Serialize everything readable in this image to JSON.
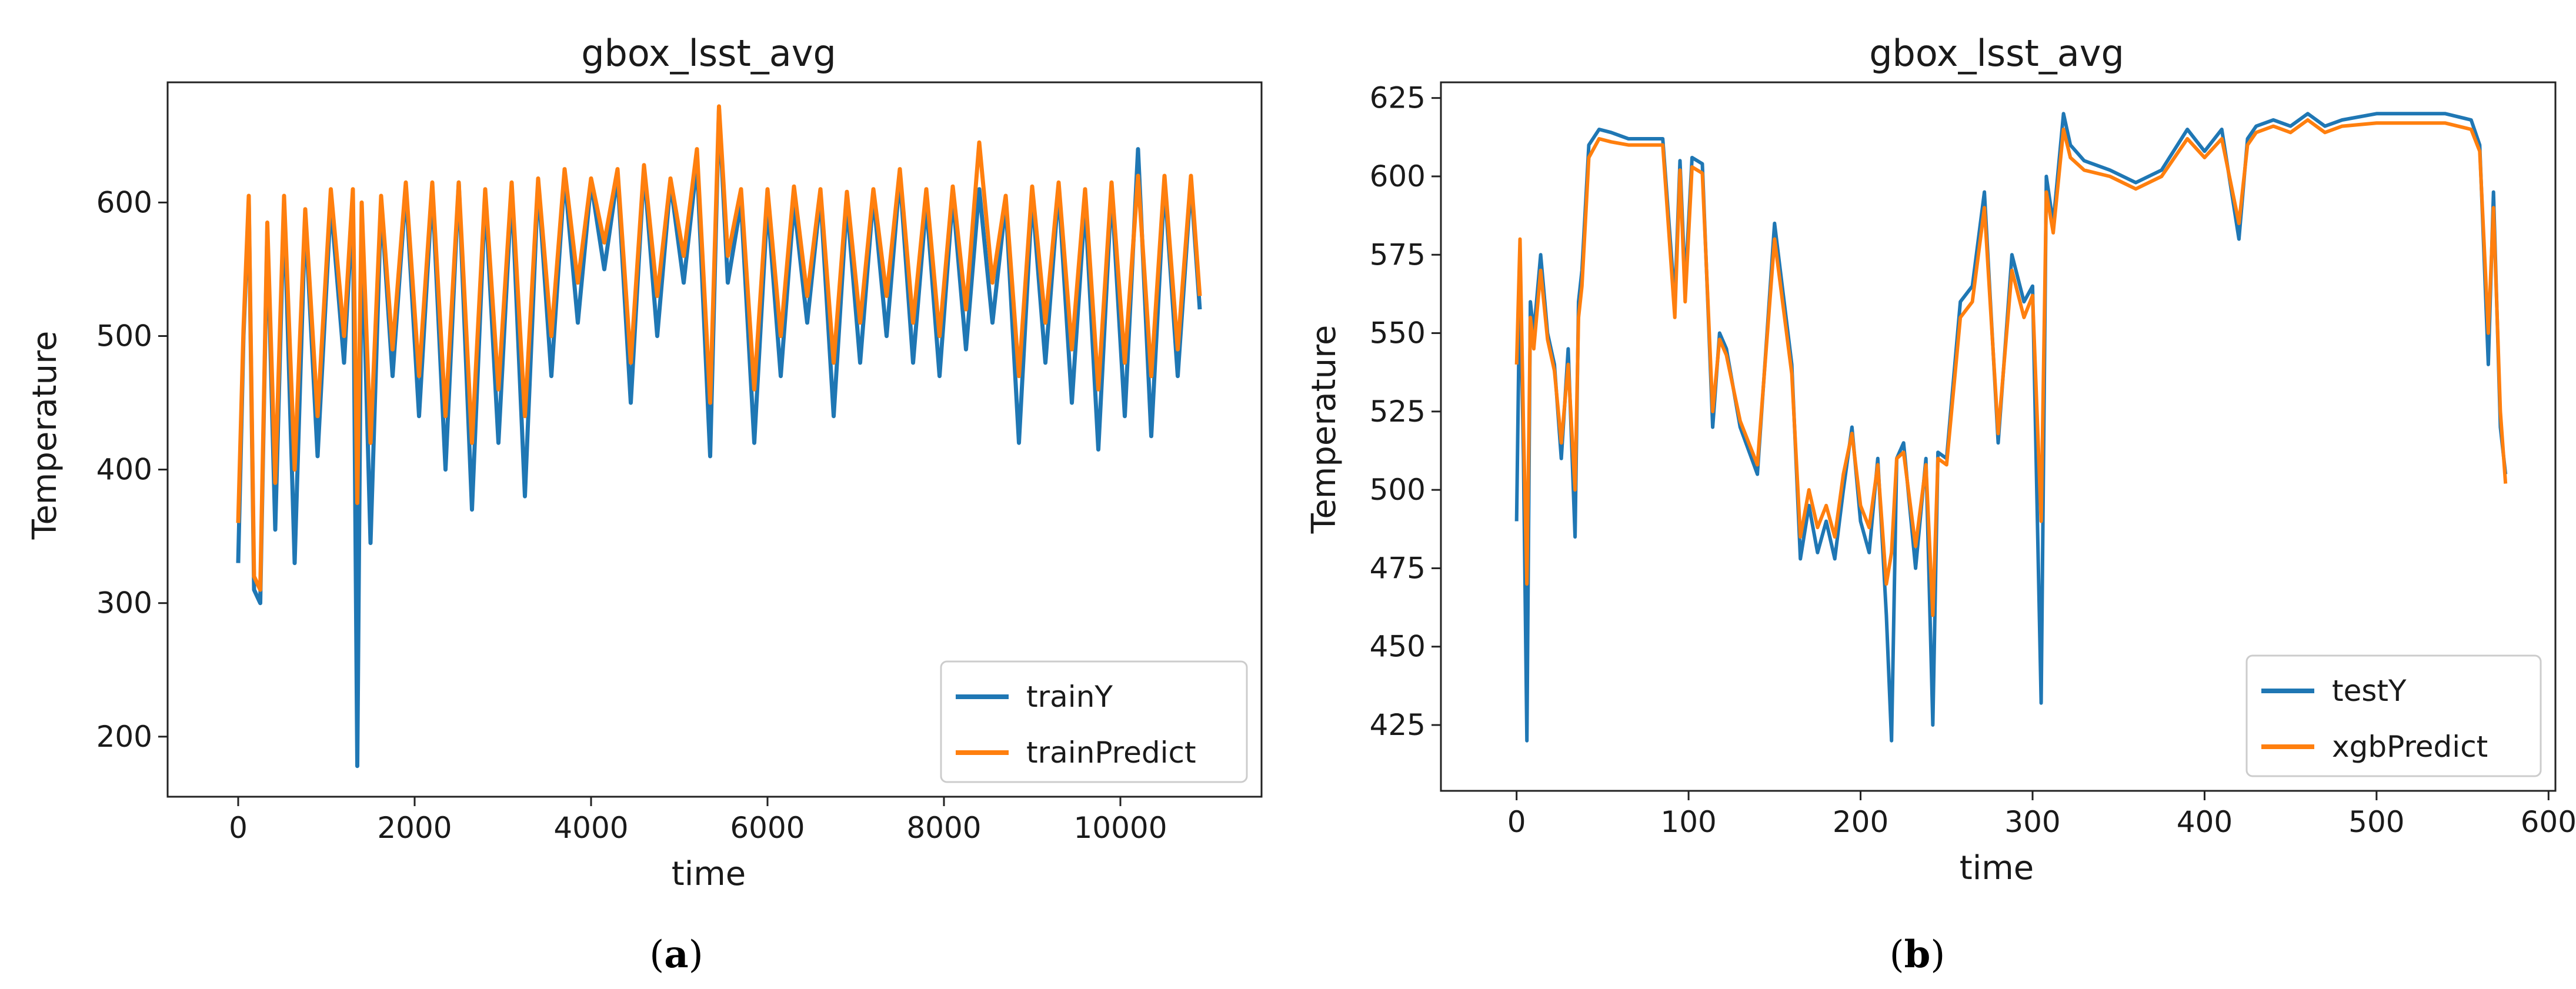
{
  "chart_data": [
    {
      "type": "line",
      "panel": "a",
      "title": "gbox_lsst_avg",
      "xlabel": "time",
      "ylabel": "Temperature",
      "xlim": [
        -800,
        11600
      ],
      "ylim": [
        155,
        690
      ],
      "xticks": [
        0,
        2000,
        4000,
        6000,
        8000,
        10000
      ],
      "yticks": [
        200,
        300,
        400,
        500,
        600
      ],
      "legend": "lower-right",
      "caption": "(a)",
      "caption_letter": "a",
      "series": [
        {
          "name": "trainY",
          "color": "#1f77b4",
          "x": [
            0,
            60,
            120,
            180,
            250,
            330,
            420,
            520,
            640,
            760,
            900,
            1050,
            1200,
            1300,
            1350,
            1400,
            1500,
            1620,
            1750,
            1900,
            2050,
            2200,
            2350,
            2500,
            2650,
            2800,
            2950,
            3100,
            3250,
            3400,
            3550,
            3700,
            3850,
            4000,
            4150,
            4300,
            4450,
            4600,
            4750,
            4900,
            5050,
            5200,
            5350,
            5450,
            5550,
            5700,
            5850,
            6000,
            6150,
            6300,
            6450,
            6600,
            6750,
            6900,
            7050,
            7200,
            7350,
            7500,
            7650,
            7800,
            7950,
            8100,
            8250,
            8400,
            8550,
            8700,
            8850,
            9000,
            9150,
            9300,
            9450,
            9600,
            9750,
            9900,
            10050,
            10200,
            10350,
            10500,
            10650,
            10800,
            10900
          ],
          "y": [
            330,
            500,
            600,
            310,
            300,
            580,
            355,
            600,
            330,
            590,
            410,
            600,
            480,
            600,
            178,
            590,
            345,
            600,
            470,
            610,
            440,
            610,
            400,
            615,
            370,
            605,
            420,
            610,
            380,
            615,
            470,
            620,
            510,
            615,
            550,
            620,
            450,
            625,
            500,
            615,
            540,
            630,
            410,
            670,
            540,
            600,
            420,
            600,
            470,
            600,
            510,
            605,
            440,
            600,
            480,
            605,
            500,
            620,
            480,
            600,
            470,
            605,
            490,
            610,
            510,
            600,
            420,
            605,
            480,
            610,
            450,
            600,
            415,
            610,
            440,
            640,
            425,
            615,
            470,
            615,
            520
          ]
        },
        {
          "name": "trainPredict",
          "color": "#ff7f0e",
          "x": [
            0,
            60,
            120,
            180,
            250,
            330,
            420,
            520,
            640,
            760,
            900,
            1050,
            1200,
            1300,
            1350,
            1400,
            1500,
            1620,
            1750,
            1900,
            2050,
            2200,
            2350,
            2500,
            2650,
            2800,
            2950,
            3100,
            3250,
            3400,
            3550,
            3700,
            3850,
            4000,
            4150,
            4300,
            4450,
            4600,
            4750,
            4900,
            5050,
            5200,
            5350,
            5450,
            5550,
            5700,
            5850,
            6000,
            6150,
            6300,
            6450,
            6600,
            6750,
            6900,
            7050,
            7200,
            7350,
            7500,
            7650,
            7800,
            7950,
            8100,
            8250,
            8400,
            8550,
            8700,
            8850,
            9000,
            9150,
            9300,
            9450,
            9600,
            9750,
            9900,
            10050,
            10200,
            10350,
            10500,
            10650,
            10800,
            10900
          ],
          "y": [
            360,
            505,
            605,
            320,
            310,
            585,
            390,
            605,
            400,
            595,
            440,
            610,
            500,
            610,
            375,
            600,
            420,
            605,
            490,
            615,
            470,
            615,
            440,
            615,
            420,
            610,
            460,
            615,
            440,
            618,
            500,
            625,
            540,
            618,
            570,
            625,
            480,
            628,
            530,
            618,
            560,
            640,
            450,
            672,
            560,
            610,
            460,
            610,
            500,
            612,
            530,
            610,
            480,
            608,
            510,
            610,
            530,
            625,
            510,
            610,
            500,
            612,
            520,
            645,
            540,
            605,
            470,
            612,
            510,
            615,
            490,
            610,
            460,
            615,
            480,
            620,
            470,
            620,
            490,
            620,
            530
          ]
        }
      ]
    },
    {
      "type": "line",
      "panel": "b",
      "title": "gbox_lsst_avg",
      "xlabel": "time",
      "ylabel": "Temperature",
      "xlim": [
        -44,
        604
      ],
      "ylim": [
        404,
        630
      ],
      "xticks": [
        0,
        100,
        200,
        300,
        400,
        500,
        600
      ],
      "yticks": [
        425,
        450,
        475,
        500,
        525,
        550,
        575,
        600,
        625
      ],
      "legend": "lower-right",
      "caption": "(b)",
      "caption_letter": "b",
      "series": [
        {
          "name": "testY",
          "color": "#1f77b4",
          "x": [
            0,
            2,
            4,
            6,
            8,
            10,
            14,
            18,
            22,
            26,
            30,
            34,
            36,
            38,
            42,
            48,
            55,
            65,
            75,
            85,
            92,
            95,
            98,
            102,
            108,
            114,
            118,
            122,
            130,
            140,
            150,
            160,
            165,
            170,
            175,
            180,
            185,
            190,
            195,
            200,
            205,
            210,
            215,
            218,
            221,
            225,
            232,
            238,
            242,
            245,
            250,
            258,
            265,
            272,
            280,
            288,
            295,
            300,
            305,
            308,
            312,
            318,
            322,
            330,
            345,
            360,
            375,
            390,
            400,
            410,
            420,
            425,
            430,
            440,
            450,
            460,
            470,
            480,
            500,
            520,
            540,
            555,
            560,
            565,
            568,
            572,
            575
          ],
          "y": [
            490,
            572,
            510,
            420,
            560,
            550,
            575,
            550,
            540,
            510,
            545,
            485,
            560,
            570,
            610,
            615,
            614,
            612,
            612,
            612,
            560,
            605,
            565,
            606,
            604,
            520,
            550,
            545,
            520,
            505,
            585,
            540,
            478,
            495,
            480,
            490,
            478,
            500,
            520,
            490,
            480,
            510,
            460,
            420,
            510,
            515,
            475,
            510,
            425,
            512,
            510,
            560,
            565,
            595,
            515,
            575,
            560,
            565,
            432,
            600,
            585,
            620,
            610,
            605,
            602,
            598,
            602,
            615,
            608,
            615,
            580,
            612,
            616,
            618,
            616,
            620,
            616,
            618,
            620,
            620,
            620,
            618,
            610,
            540,
            595,
            520,
            505
          ]
        },
        {
          "name": "xgbPredict",
          "color": "#ff7f0e",
          "x": [
            0,
            2,
            4,
            6,
            8,
            10,
            14,
            18,
            22,
            26,
            30,
            34,
            36,
            38,
            42,
            48,
            55,
            65,
            75,
            85,
            92,
            95,
            98,
            102,
            108,
            114,
            118,
            122,
            130,
            140,
            150,
            160,
            165,
            170,
            175,
            180,
            185,
            190,
            195,
            200,
            205,
            210,
            215,
            218,
            221,
            225,
            232,
            238,
            242,
            245,
            250,
            258,
            265,
            272,
            280,
            288,
            295,
            300,
            305,
            308,
            312,
            318,
            322,
            330,
            345,
            360,
            375,
            390,
            400,
            410,
            420,
            425,
            430,
            440,
            450,
            460,
            470,
            480,
            500,
            520,
            540,
            555,
            560,
            565,
            568,
            572,
            575
          ],
          "y": [
            540,
            580,
            520,
            470,
            555,
            545,
            570,
            548,
            538,
            515,
            540,
            500,
            555,
            565,
            606,
            612,
            611,
            610,
            610,
            610,
            555,
            602,
            560,
            603,
            601,
            525,
            548,
            543,
            522,
            508,
            580,
            537,
            485,
            500,
            488,
            495,
            485,
            505,
            518,
            495,
            488,
            508,
            470,
            480,
            510,
            512,
            482,
            508,
            460,
            510,
            508,
            555,
            560,
            590,
            518,
            570,
            555,
            562,
            490,
            595,
            582,
            615,
            606,
            602,
            600,
            596,
            600,
            612,
            606,
            612,
            585,
            610,
            614,
            616,
            614,
            618,
            614,
            616,
            617,
            617,
            617,
            615,
            608,
            550,
            590,
            525,
            502
          ]
        }
      ]
    }
  ]
}
